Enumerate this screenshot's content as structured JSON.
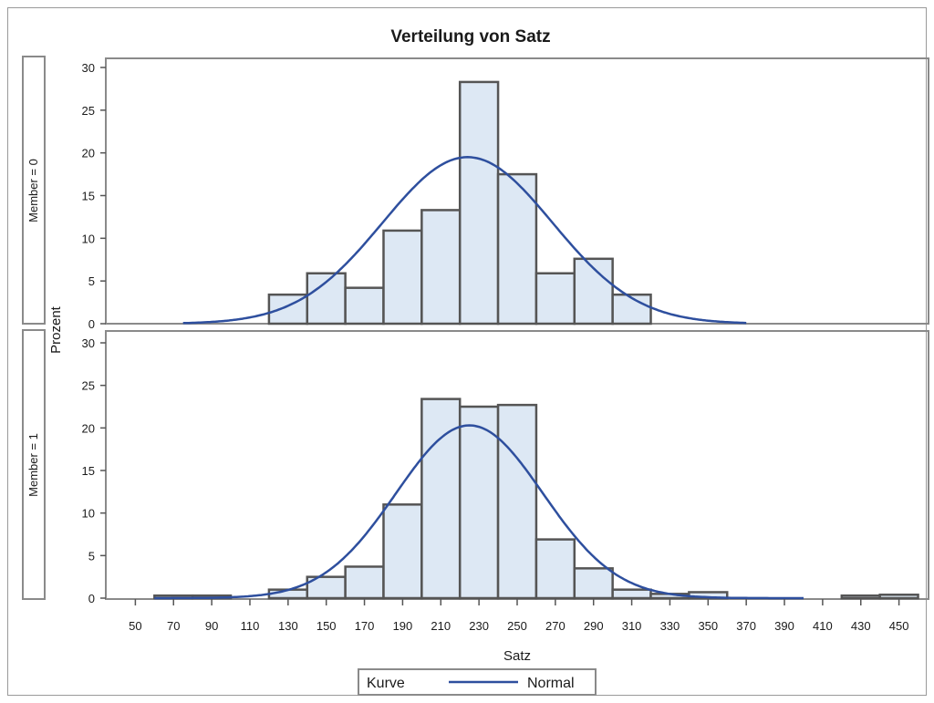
{
  "chart_data": {
    "type": "bar",
    "title": "Verteilung von Satz",
    "xlabel": "Satz",
    "ylabel": "Prozent",
    "xlim": [
      35,
      465
    ],
    "ylim": [
      0,
      31
    ],
    "bin_width": 20,
    "x_ticks": [
      50,
      70,
      90,
      110,
      130,
      150,
      170,
      190,
      210,
      230,
      250,
      270,
      290,
      310,
      330,
      350,
      370,
      390,
      410,
      430,
      450
    ],
    "y_ticks": [
      0,
      5,
      10,
      15,
      20,
      25,
      30
    ],
    "grid": false,
    "colors": {
      "bar_fill": "#dde8f4",
      "bar_stroke": "#555555",
      "curve": "#2e4f9e",
      "frame": "#8a8a8a"
    },
    "panels": [
      {
        "label": "Member = 0",
        "bins": [
          {
            "x": 130,
            "value": 3.4
          },
          {
            "x": 150,
            "value": 5.9
          },
          {
            "x": 170,
            "value": 4.2
          },
          {
            "x": 190,
            "value": 10.9
          },
          {
            "x": 210,
            "value": 13.3
          },
          {
            "x": 230,
            "value": 28.3
          },
          {
            "x": 250,
            "value": 17.5
          },
          {
            "x": 270,
            "value": 5.9
          },
          {
            "x": 290,
            "value": 7.6
          },
          {
            "x": 310,
            "value": 3.4
          }
        ],
        "normal_curve": {
          "mean": 224,
          "sd": 44.5,
          "peak": 19.5,
          "x_range": [
            75,
            370
          ]
        }
      },
      {
        "label": "Member = 1",
        "bins": [
          {
            "x": 70,
            "value": 0.3
          },
          {
            "x": 90,
            "value": 0.3
          },
          {
            "x": 130,
            "value": 1.0
          },
          {
            "x": 150,
            "value": 2.5
          },
          {
            "x": 170,
            "value": 3.7
          },
          {
            "x": 190,
            "value": 11.0
          },
          {
            "x": 210,
            "value": 23.4
          },
          {
            "x": 230,
            "value": 22.5
          },
          {
            "x": 250,
            "value": 22.7
          },
          {
            "x": 270,
            "value": 6.9
          },
          {
            "x": 290,
            "value": 3.5
          },
          {
            "x": 310,
            "value": 1.0
          },
          {
            "x": 330,
            "value": 0.5
          },
          {
            "x": 350,
            "value": 0.7
          },
          {
            "x": 430,
            "value": 0.3
          },
          {
            "x": 450,
            "value": 0.4
          }
        ],
        "normal_curve": {
          "mean": 225,
          "sd": 38.5,
          "peak": 20.3,
          "x_range": [
            60,
            400
          ]
        }
      }
    ],
    "legend": {
      "title": "Kurve",
      "items": [
        {
          "name": "Normal"
        }
      ],
      "placement": "bottom-center"
    }
  }
}
